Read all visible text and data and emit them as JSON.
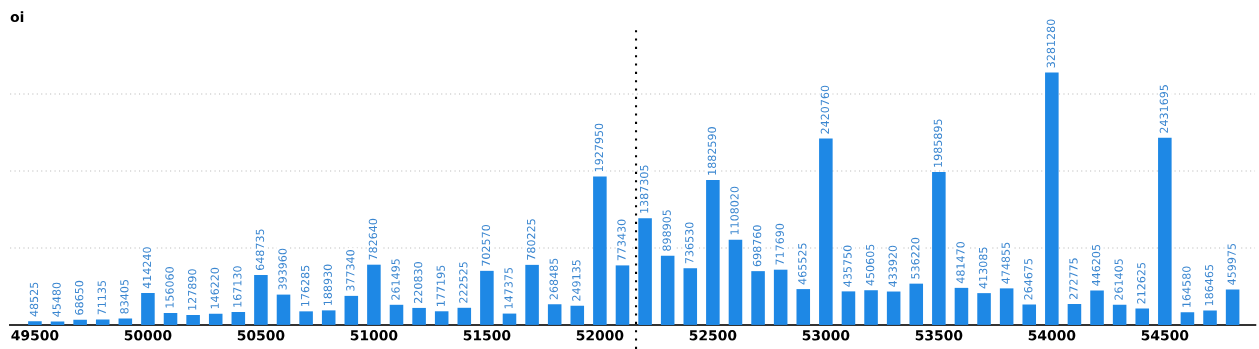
{
  "chart_data": {
    "type": "bar",
    "ylabel": "oi",
    "x": [
      49500,
      49600,
      49700,
      49800,
      49900,
      50000,
      50100,
      50200,
      50300,
      50400,
      50500,
      50600,
      50700,
      50800,
      50900,
      51000,
      51100,
      51200,
      51300,
      51400,
      51500,
      51600,
      51700,
      51800,
      51900,
      52000,
      52100,
      52200,
      52300,
      52400,
      52500,
      52600,
      52700,
      52800,
      52900,
      53000,
      53100,
      53200,
      53300,
      53400,
      53500,
      53600,
      53700,
      53800,
      53900,
      54000,
      54100,
      54200,
      54300,
      54400,
      54500,
      54600,
      54700,
      54800
    ],
    "values": [
      48525,
      45480,
      68650,
      71135,
      83405,
      414240,
      156060,
      127890,
      146220,
      167130,
      648735,
      393960,
      176285,
      188930,
      377340,
      782640,
      261495,
      220830,
      177195,
      222525,
      702570,
      147375,
      780225,
      268485,
      249135,
      1927950,
      773430,
      1387305,
      898905,
      736530,
      1882590,
      1108020,
      698760,
      717690,
      465525,
      2420760,
      435750,
      450605,
      433920,
      536220,
      1985895,
      481470,
      413085,
      474855,
      264675,
      3281280,
      272775,
      446205,
      261405,
      212625,
      2431695,
      164580,
      186465,
      459975
    ],
    "color": "#1e88e5",
    "data_labels": true,
    "xlim": [
      49390,
      54900
    ],
    "xticks": [
      49500,
      50000,
      50500,
      51000,
      51500,
      52000,
      52500,
      53000,
      53500,
      54000,
      54500
    ],
    "ylim": [
      0,
      3900000
    ],
    "yticks": [
      {
        "value": 1000000,
        "label": null
      },
      {
        "value": 2000000,
        "label": null
      },
      {
        "value": 3000000,
        "label": null
      }
    ],
    "tick_labels": "x",
    "grid": "y",
    "ref_lines": [
      {
        "axis": "x",
        "value": 52160,
        "line_style": "dotted",
        "color": "#000000"
      }
    ]
  }
}
